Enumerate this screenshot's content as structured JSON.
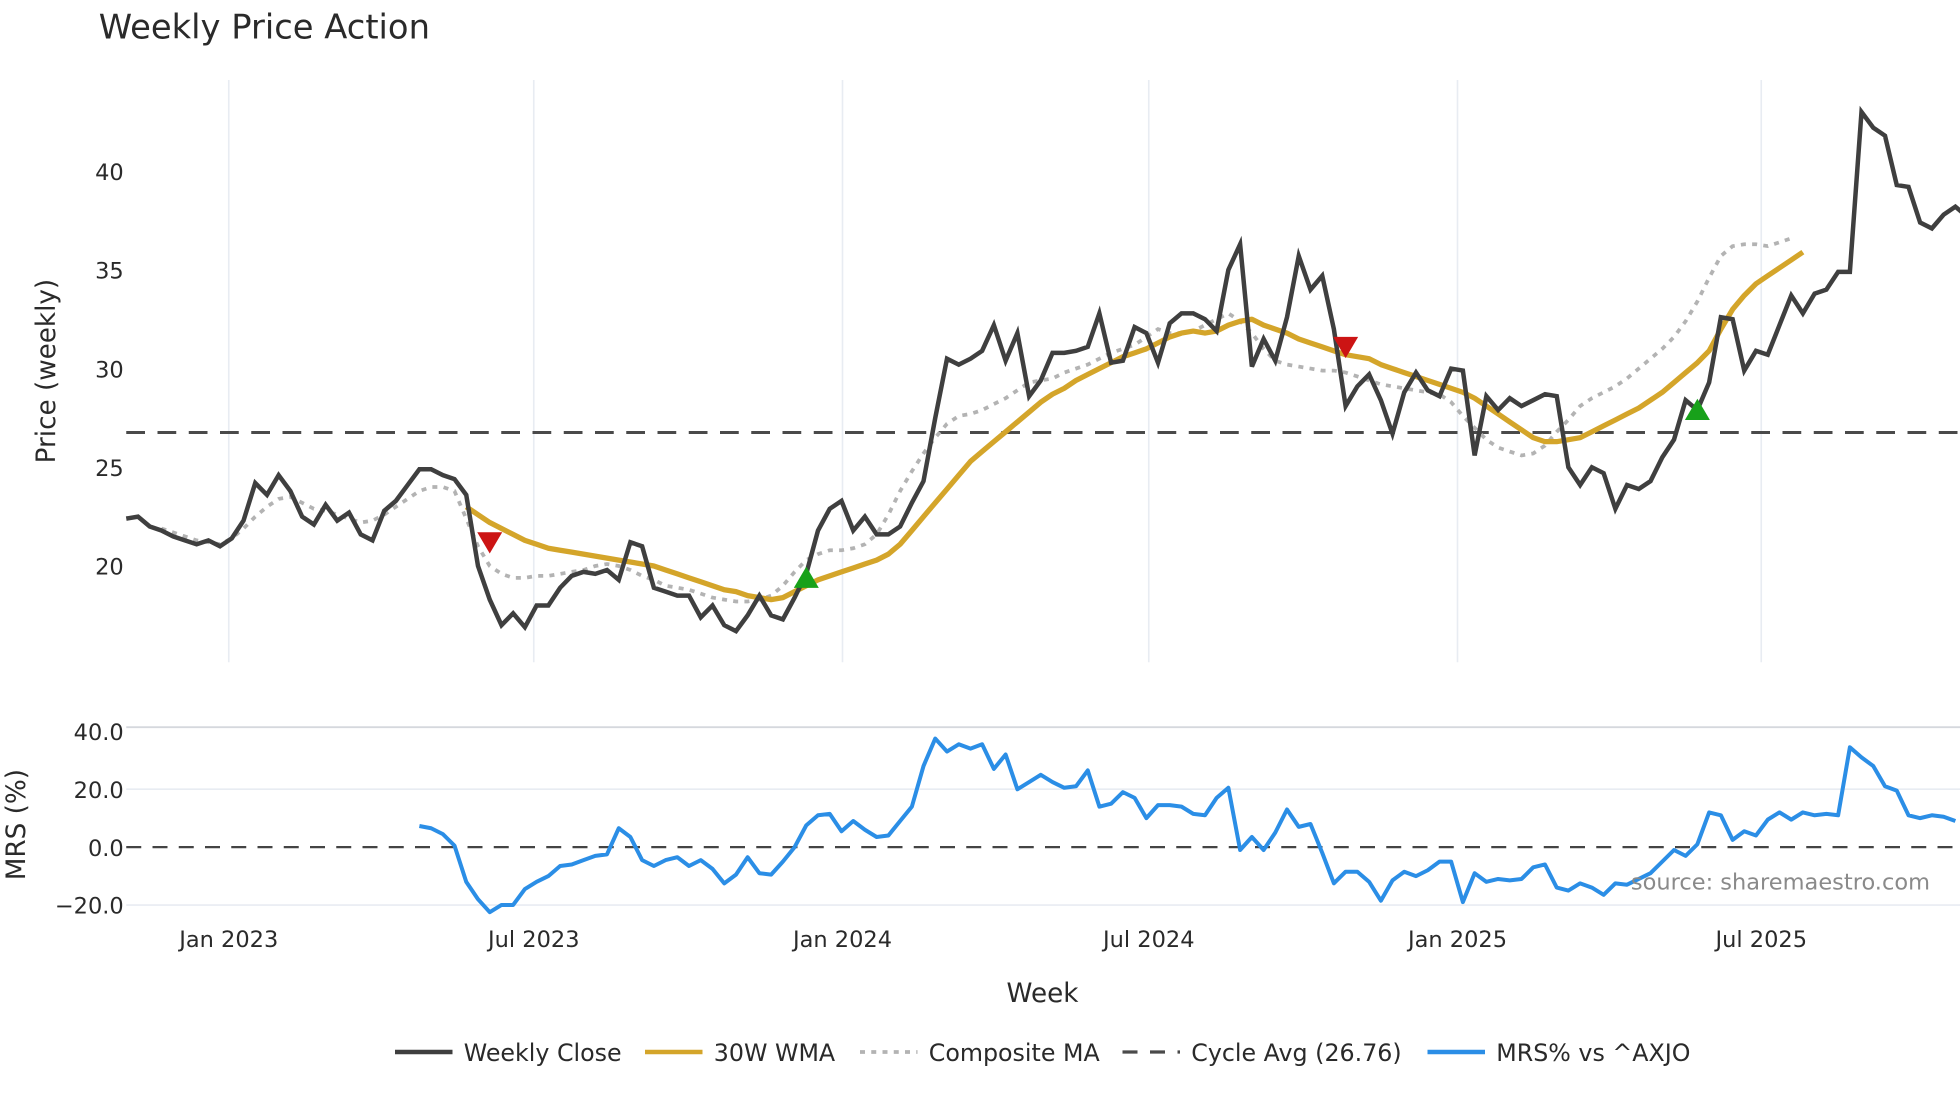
{
  "title": "Weekly Price Action",
  "source_note": "source: sharemaestro.com",
  "colors": {
    "close": "#3f3f3f",
    "wma": "#d4a52a",
    "composite": "#b3b3b3",
    "cycle": "#4a4a4a",
    "mrs": "#2b8ee6",
    "buy": "#18a11a",
    "sell": "#cc1414",
    "grid": "#e8ecf2"
  },
  "legend": [
    {
      "label": "Weekly Close",
      "style": "solid",
      "color": "#3f3f3f"
    },
    {
      "label": "30W WMA",
      "style": "solid",
      "color": "#d4a52a"
    },
    {
      "label": "Composite MA",
      "style": "dotted",
      "color": "#b3b3b3"
    },
    {
      "label": "Cycle Avg (26.76)",
      "style": "dashed",
      "color": "#4a4a4a"
    },
    {
      "label": "MRS% vs ^AXJO",
      "style": "solid",
      "color": "#2b8ee6"
    }
  ],
  "chart_data": [
    {
      "type": "line",
      "title": "Weekly Price Action",
      "xlabel": "Week",
      "ylabel": "Price (weekly)",
      "yticks": [
        20,
        25,
        30,
        35,
        40
      ],
      "xticks": [
        "Jan 2023",
        "Jul 2023",
        "Jan 2024",
        "Jul 2024",
        "Jan 2025",
        "Jul 2025"
      ],
      "grid": true,
      "legend_position": "bottom",
      "x_start_week_offset": -9,
      "cycle_avg": 26.76,
      "series": [
        {
          "name": "Weekly Close",
          "start_index": 0,
          "values": [
            22.4,
            22.5,
            22.0,
            21.8,
            21.5,
            21.3,
            21.1,
            21.3,
            21.0,
            21.4,
            22.3,
            24.2,
            23.6,
            24.6,
            23.8,
            22.5,
            22.1,
            23.1,
            22.3,
            22.7,
            21.6,
            21.3,
            22.8,
            23.3,
            24.1,
            24.9,
            24.9,
            24.6,
            24.4,
            23.6,
            20.0,
            18.3,
            17.0,
            17.6,
            16.9,
            18.0,
            18.0,
            18.9,
            19.5,
            19.7,
            19.6,
            19.8,
            19.3,
            21.2,
            21.0,
            18.9,
            18.7,
            18.5,
            18.5,
            17.4,
            18.0,
            17.0,
            16.7,
            17.5,
            18.5,
            17.5,
            17.3,
            18.4,
            19.6,
            21.8,
            22.9,
            23.3,
            21.8,
            22.5,
            21.6,
            21.6,
            22.0,
            23.2,
            24.3,
            27.5,
            30.5,
            30.2,
            30.5,
            30.9,
            32.2,
            30.4,
            31.8,
            28.6,
            29.4,
            30.8,
            30.8,
            30.9,
            31.1,
            32.8,
            30.3,
            30.4,
            32.1,
            31.8,
            30.3,
            32.3,
            32.8,
            32.8,
            32.5,
            31.9,
            35.0,
            36.3,
            30.1,
            31.5,
            30.4,
            32.6,
            35.7,
            34.0,
            34.7,
            32.0,
            28.1,
            29.1,
            29.7,
            28.4,
            26.7,
            28.8,
            29.8,
            28.9,
            28.6,
            30.0,
            29.9,
            25.6,
            28.6,
            27.9,
            28.5,
            28.1,
            28.4,
            28.7,
            28.6,
            25.0,
            24.1,
            25.0,
            24.7,
            22.9,
            24.1,
            23.9,
            24.3,
            25.5,
            26.4,
            28.4,
            27.9,
            29.3,
            32.6,
            32.5,
            29.9,
            30.9,
            30.7,
            32.2,
            33.7,
            32.8,
            33.8,
            34.0,
            34.9,
            34.9,
            43.0,
            42.2,
            41.8,
            39.3,
            39.2,
            37.4,
            37.1,
            37.8,
            38.2,
            37.7
          ]
        },
        {
          "name": "30W WMA",
          "start_index": 29,
          "values": [
            23.0,
            22.6,
            22.2,
            21.9,
            21.6,
            21.3,
            21.1,
            20.9,
            20.8,
            20.7,
            20.6,
            20.5,
            20.4,
            20.3,
            20.2,
            20.1,
            20.0,
            19.8,
            19.6,
            19.4,
            19.2,
            19.0,
            18.8,
            18.7,
            18.5,
            18.4,
            18.3,
            18.4,
            18.7,
            19.0,
            19.3,
            19.5,
            19.7,
            19.9,
            20.1,
            20.3,
            20.6,
            21.1,
            21.8,
            22.5,
            23.2,
            23.9,
            24.6,
            25.3,
            25.8,
            26.3,
            26.8,
            27.3,
            27.8,
            28.3,
            28.7,
            29.0,
            29.4,
            29.7,
            30.0,
            30.3,
            30.6,
            30.8,
            31.0,
            31.3,
            31.6,
            31.8,
            31.9,
            31.8,
            31.9,
            32.2,
            32.4,
            32.5,
            32.2,
            32.0,
            31.8,
            31.5,
            31.3,
            31.1,
            30.9,
            30.7,
            30.6,
            30.5,
            30.2,
            30.0,
            29.8,
            29.6,
            29.4,
            29.2,
            29.0,
            28.8,
            28.5,
            28.1,
            27.7,
            27.3,
            26.9,
            26.5,
            26.3,
            26.3,
            26.4,
            26.5,
            26.8,
            27.1,
            27.4,
            27.7,
            28.0,
            28.4,
            28.8,
            29.3,
            29.8,
            30.3,
            30.9,
            32.0,
            33.0,
            33.7,
            34.3,
            34.7,
            35.1,
            35.5,
            35.9
          ]
        },
        {
          "name": "Composite MA",
          "start_index": 3,
          "values": [
            21.9,
            21.7,
            21.5,
            21.3,
            21.2,
            21.1,
            21.4,
            21.9,
            22.5,
            23.0,
            23.4,
            23.5,
            23.2,
            22.9,
            22.8,
            22.6,
            22.4,
            22.2,
            22.3,
            22.6,
            23.0,
            23.4,
            23.8,
            24.0,
            24.0,
            23.8,
            22.4,
            21.0,
            20.0,
            19.6,
            19.4,
            19.4,
            19.5,
            19.5,
            19.6,
            19.7,
            19.8,
            20.0,
            20.1,
            20.0,
            19.8,
            19.5,
            19.3,
            19.0,
            18.9,
            18.8,
            18.6,
            18.4,
            18.3,
            18.2,
            18.2,
            18.3,
            18.5,
            19.0,
            19.7,
            20.3,
            20.6,
            20.8,
            20.8,
            20.9,
            21.1,
            21.6,
            22.6,
            23.8,
            24.8,
            25.7,
            26.5,
            27.2,
            27.6,
            27.7,
            27.9,
            28.2,
            28.5,
            28.9,
            29.3,
            29.4,
            29.5,
            29.8,
            30.0,
            30.2,
            30.5,
            30.8,
            31.0,
            31.2,
            31.6,
            32.0,
            31.8,
            31.8,
            31.9,
            32.2,
            32.5,
            32.8,
            32.4,
            31.8,
            31.0,
            30.4,
            30.2,
            30.1,
            30.0,
            29.9,
            29.9,
            29.8,
            29.6,
            29.4,
            29.2,
            29.1,
            29.0,
            28.9,
            28.8,
            28.7,
            28.3,
            27.6,
            27.0,
            26.4,
            26.0,
            25.8,
            25.6,
            25.7,
            26.1,
            26.8,
            27.4,
            28.1,
            28.5,
            28.8,
            29.1,
            29.5,
            30.0,
            30.5,
            31.0,
            31.6,
            32.4,
            33.4,
            34.6,
            35.7,
            36.2,
            36.3,
            36.3,
            36.2,
            36.4,
            36.6
          ]
        }
      ],
      "markers": [
        {
          "type": "sell",
          "week_index": 31,
          "price": 21.2
        },
        {
          "type": "buy",
          "week_index": 58,
          "price": 19.4
        },
        {
          "type": "sell",
          "week_index": 104,
          "price": 31.1
        },
        {
          "type": "buy",
          "week_index": 134,
          "price": 27.9
        }
      ]
    },
    {
      "type": "line",
      "ylabel": "MRS (%)",
      "yticks": [
        -20.0,
        0.0,
        20.0,
        40.0
      ],
      "series": [
        {
          "name": "MRS% vs ^AXJO",
          "start_index": 25,
          "values": [
            7.3,
            6.5,
            4.5,
            0.5,
            -12,
            -18,
            -22.5,
            -20,
            -20,
            -14.5,
            -12,
            -10,
            -6.5,
            -6,
            -4.5,
            -3,
            -2.5,
            6.5,
            3.5,
            -4.5,
            -6.5,
            -4.5,
            -3.5,
            -6.5,
            -4.5,
            -7.5,
            -12.5,
            -9.5,
            -3.5,
            -9,
            -9.5,
            -5,
            0,
            7.5,
            11,
            11.5,
            5.5,
            9,
            6,
            3.5,
            4,
            9,
            14,
            28,
            37.5,
            33,
            35.5,
            34,
            35.5,
            27,
            32,
            20,
            22.5,
            25,
            22.5,
            20.5,
            21,
            26.5,
            14,
            15,
            19,
            17,
            10,
            14.5,
            14.5,
            14,
            11.5,
            11,
            17,
            20.5,
            -1,
            3.5,
            -1,
            5,
            13,
            7,
            8,
            -2,
            -12.5,
            -8.5,
            -8.5,
            -12,
            -18.5,
            -11.5,
            -8.5,
            -10,
            -8,
            -5,
            -5,
            -19,
            -9,
            -12,
            -11,
            -11.5,
            -11,
            -7,
            -6,
            -14,
            -15,
            -12.5,
            -14,
            -16.5,
            -12.5,
            -13,
            -11,
            -9,
            -5,
            -1,
            -3,
            1,
            12,
            11,
            2.5,
            5.5,
            4,
            9.5,
            12,
            9.5,
            12,
            11,
            11.5,
            11,
            34.5,
            31,
            28,
            21,
            19.5,
            11,
            10,
            11,
            10.5,
            9
          ]
        }
      ],
      "zero_line": 0
    }
  ],
  "axes": {
    "price_ylabel": "Price (weekly)",
    "mrs_ylabel": "MRS (%)",
    "xlabel": "Week",
    "price_ticks": [
      "20",
      "25",
      "30",
      "35",
      "40"
    ],
    "mrs_ticks": [
      "40.0",
      "20.0",
      "0.0",
      "−20.0"
    ],
    "x_ticks": [
      "Jan 2023",
      "Jul 2023",
      "Jan 2024",
      "Jul 2024",
      "Jan 2025",
      "Jul 2025"
    ]
  }
}
